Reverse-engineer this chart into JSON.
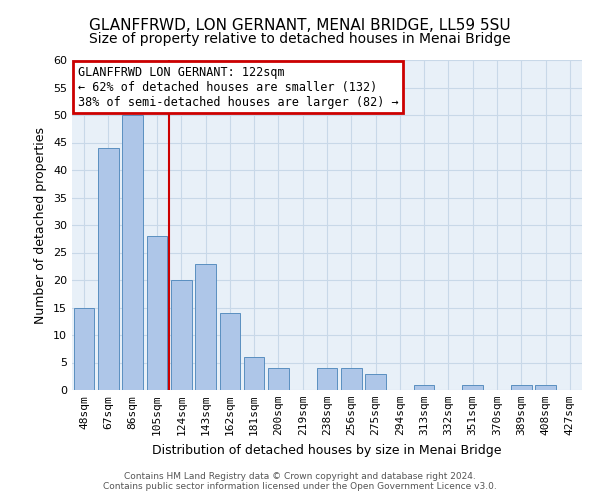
{
  "title": "GLANFFRWD, LON GERNANT, MENAI BRIDGE, LL59 5SU",
  "subtitle": "Size of property relative to detached houses in Menai Bridge",
  "xlabel": "Distribution of detached houses by size in Menai Bridge",
  "ylabel": "Number of detached properties",
  "categories": [
    "48sqm",
    "67sqm",
    "86sqm",
    "105sqm",
    "124sqm",
    "143sqm",
    "162sqm",
    "181sqm",
    "200sqm",
    "219sqm",
    "238sqm",
    "256sqm",
    "275sqm",
    "294sqm",
    "313sqm",
    "332sqm",
    "351sqm",
    "370sqm",
    "389sqm",
    "408sqm",
    "427sqm"
  ],
  "values": [
    15,
    44,
    50,
    28,
    20,
    23,
    14,
    6,
    4,
    0,
    4,
    4,
    3,
    0,
    1,
    0,
    1,
    0,
    1,
    1,
    0
  ],
  "bar_color": "#aec6e8",
  "bar_edge_color": "#5a8fc0",
  "annotation_title": "GLANFFRWD LON GERNANT: 122sqm",
  "annotation_line1": "← 62% of detached houses are smaller (132)",
  "annotation_line2": "38% of semi-detached houses are larger (82) →",
  "annotation_box_color": "#ffffff",
  "annotation_box_edge_color": "#cc0000",
  "vline_x": 3.5,
  "vline_color": "#cc0000",
  "ylim": [
    0,
    60
  ],
  "yticks": [
    0,
    5,
    10,
    15,
    20,
    25,
    30,
    35,
    40,
    45,
    50,
    55,
    60
  ],
  "footer_line1": "Contains HM Land Registry data © Crown copyright and database right 2024.",
  "footer_line2": "Contains public sector information licensed under the Open Government Licence v3.0.",
  "bg_color": "#ffffff",
  "plot_bg_color": "#e8f0f8",
  "grid_color": "#c8d8e8",
  "title_fontsize": 11,
  "subtitle_fontsize": 10,
  "axis_label_fontsize": 9,
  "tick_fontsize": 8,
  "annotation_fontsize": 8.5
}
